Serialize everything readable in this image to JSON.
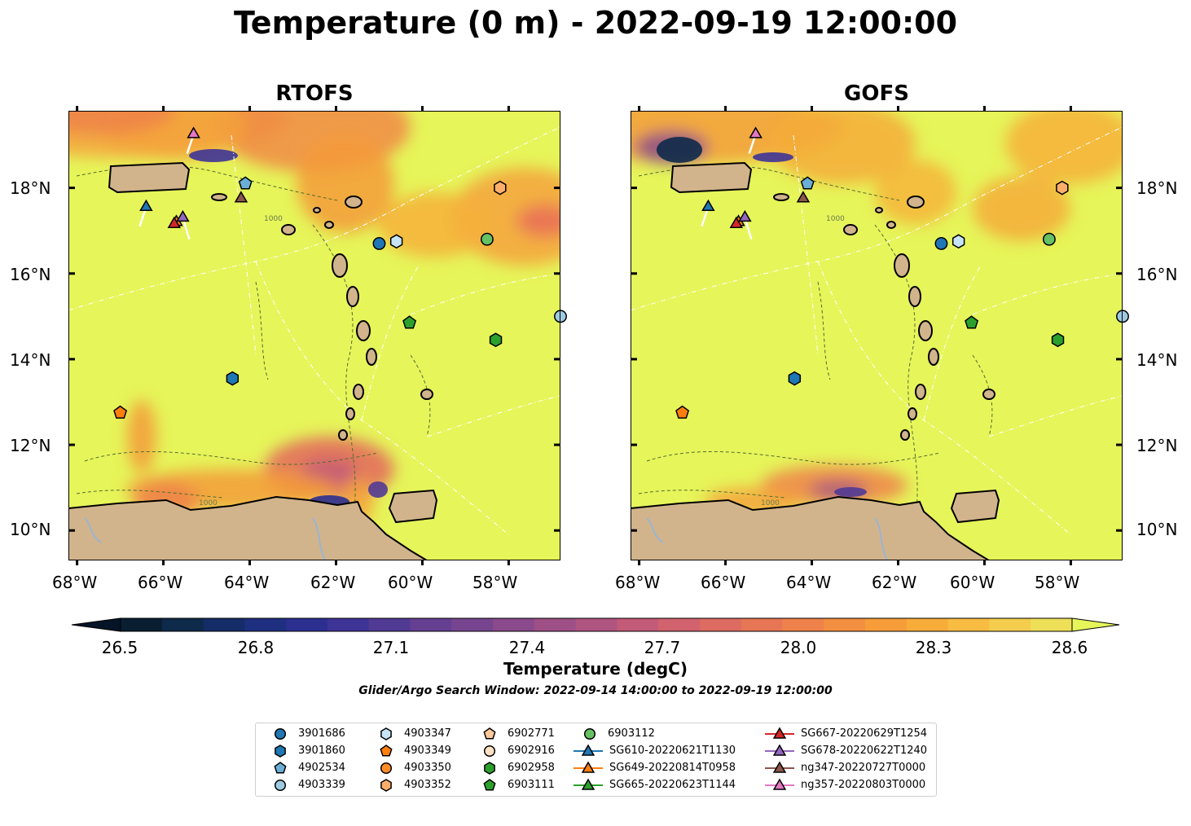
{
  "figure": {
    "title": "Temperature (0 m) - 2022-09-19 12:00:00",
    "panels": [
      "RTOFS",
      "GOFS"
    ],
    "lat_labels": [
      "18°N",
      "16°N",
      "14°N",
      "12°N",
      "10°N"
    ],
    "lon_labels": [
      "68°W",
      "66°W",
      "64°W",
      "62°W",
      "60°W",
      "58°W"
    ],
    "extent": {
      "lon": [
        -68.2,
        -56.8
      ],
      "lat": [
        9.3,
        19.8
      ]
    },
    "contour_label": "1000"
  },
  "colorbar": {
    "ticks": [
      "26.5",
      "26.8",
      "27.1",
      "27.4",
      "27.7",
      "28.0",
      "28.3",
      "28.6"
    ],
    "range": [
      26.5,
      28.6
    ],
    "title": "Temperature (degC)",
    "colors": [
      "#0a1e32",
      "#0e2a4a",
      "#142c68",
      "#1f2f80",
      "#2c2f90",
      "#3e3397",
      "#513a94",
      "#653f92",
      "#77458f",
      "#8a4a8b",
      "#9d4f86",
      "#b05480",
      "#c35a78",
      "#d1626e",
      "#dd6b62",
      "#e77655",
      "#ee824a",
      "#f38f40",
      "#f69d3a",
      "#f7ac3a",
      "#f7bc41",
      "#f4cd4e",
      "#eedf58"
    ],
    "over_color": "#e6f55a",
    "under_color": "#061428"
  },
  "search_window": "Glider/Argo Search Window: 2022-09-14 14:00:00 to 2022-09-19 12:00:00",
  "legend": {
    "items": [
      {
        "label": "3901686",
        "marker": "circle",
        "color": "#1f77b4"
      },
      {
        "label": "3901860",
        "marker": "hexagon",
        "color": "#1f77b4"
      },
      {
        "label": "4902534",
        "marker": "pentagon",
        "color": "#6aaed6"
      },
      {
        "label": "4903339",
        "marker": "circle",
        "color": "#9ecae1"
      },
      {
        "label": "4903347",
        "marker": "hexagon",
        "color": "#c6e4f5"
      },
      {
        "label": "4903349",
        "marker": "pentagon",
        "color": "#ff7f0e"
      },
      {
        "label": "4903350",
        "marker": "circle",
        "color": "#ff8c2a"
      },
      {
        "label": "4903352",
        "marker": "hexagon",
        "color": "#fdae6b"
      },
      {
        "label": "6902771",
        "marker": "pentagon",
        "color": "#fdc89a"
      },
      {
        "label": "6902916",
        "marker": "circle",
        "color": "#fee0c2"
      },
      {
        "label": "6902958",
        "marker": "hexagon",
        "color": "#2ca02c"
      },
      {
        "label": "6903111",
        "marker": "pentagon",
        "color": "#2ca02c"
      },
      {
        "label": "6903112",
        "marker": "circle",
        "color": "#66c164"
      },
      {
        "label": "SG610-20220621T1130",
        "marker": "triangle",
        "color": "#1f77b4"
      },
      {
        "label": "SG649-20220814T0958",
        "marker": "triangle",
        "color": "#ff7f0e"
      },
      {
        "label": "SG665-20220623T1144",
        "marker": "triangle",
        "color": "#2ca02c"
      },
      {
        "label": "SG667-20220629T1254",
        "marker": "triangle",
        "color": "#d62728"
      },
      {
        "label": "SG678-20220622T1240",
        "marker": "triangle",
        "color": "#9467bd"
      },
      {
        "label": "ng347-20220727T0000",
        "marker": "triangle",
        "color": "#8c564b"
      },
      {
        "label": "ng357-20220803T0000",
        "marker": "triangle",
        "color": "#e377c2"
      }
    ]
  },
  "observations": [
    {
      "id": "3901686",
      "lon": -61.0,
      "lat": 16.7
    },
    {
      "id": "3901860",
      "lon": -64.4,
      "lat": 13.55
    },
    {
      "id": "4902534",
      "lon": -64.1,
      "lat": 18.1
    },
    {
      "id": "4903339",
      "lon": -56.8,
      "lat": 15.0
    },
    {
      "id": "4903347",
      "lon": -60.6,
      "lat": 16.75
    },
    {
      "id": "4903349",
      "lon": -67.0,
      "lat": 12.75
    },
    {
      "id": "4903352",
      "lon": -58.2,
      "lat": 18.0
    },
    {
      "id": "6902958",
      "lon": -58.3,
      "lat": 14.45
    },
    {
      "id": "6903111",
      "lon": -60.3,
      "lat": 14.85
    },
    {
      "id": "6903112",
      "lon": -58.5,
      "lat": 16.8
    },
    {
      "id": "SG610-20220621T1130",
      "lon": -66.4,
      "lat": 17.55
    },
    {
      "id": "SG649-20220814T0958",
      "lon": -65.7,
      "lat": 17.2
    },
    {
      "id": "SG667-20220629T1254",
      "lon": -65.75,
      "lat": 17.15
    },
    {
      "id": "SG678-20220622T1240",
      "lon": -65.55,
      "lat": 17.3
    },
    {
      "id": "ng347-20220727T0000",
      "lon": -64.2,
      "lat": 17.75
    },
    {
      "id": "ng357-20220803T0000",
      "lon": -65.3,
      "lat": 19.25
    }
  ]
}
